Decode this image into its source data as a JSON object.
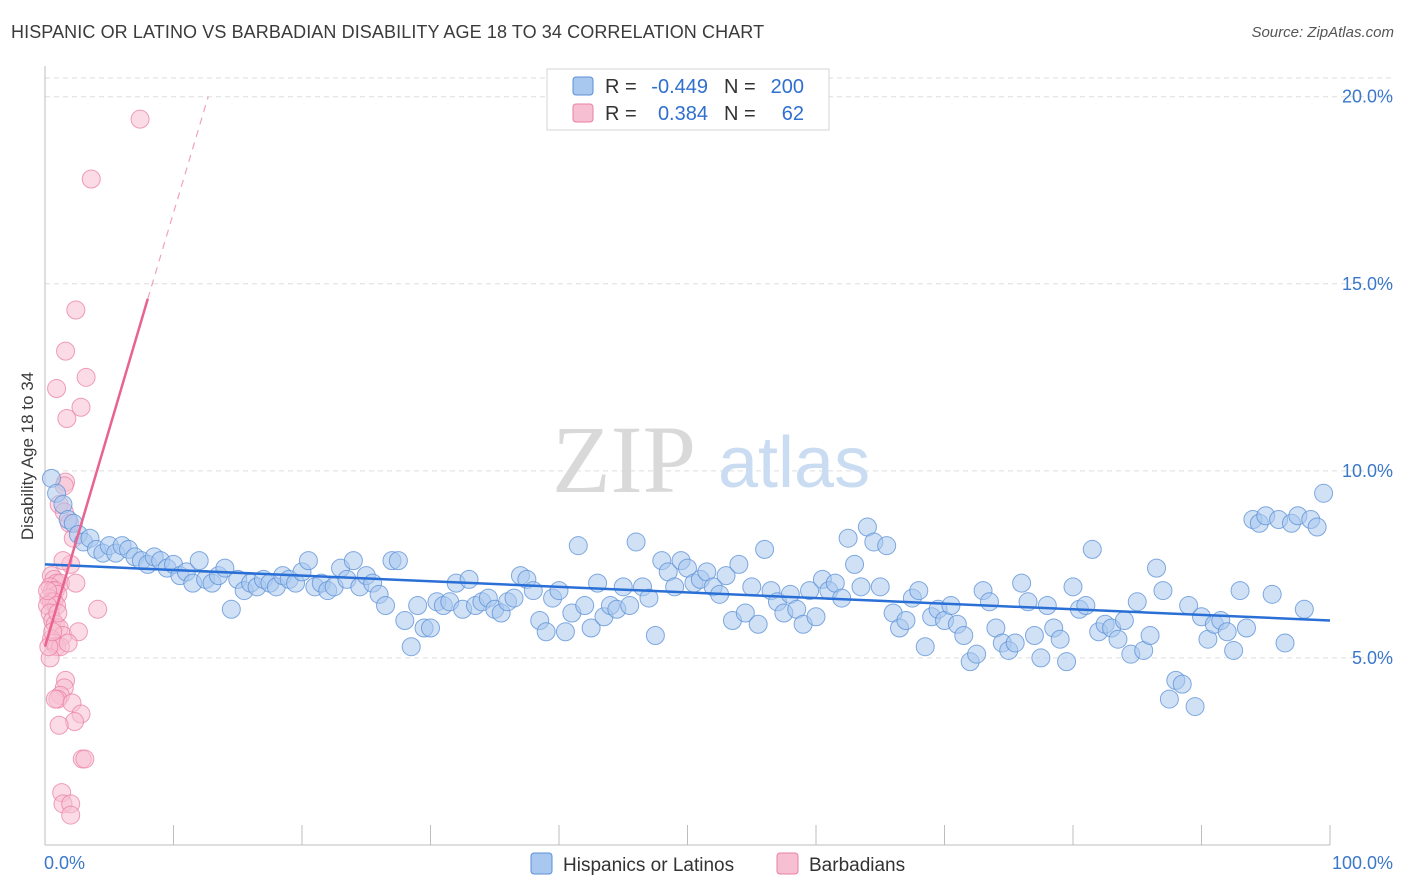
{
  "header": {
    "title": "HISPANIC OR LATINO VS BARBADIAN DISABILITY AGE 18 TO 34 CORRELATION CHART",
    "source": "Source: ZipAtlas.com"
  },
  "watermark": {
    "zip": "ZIP",
    "atlas": "atlas"
  },
  "colors": {
    "blue_fill": "#a9c8ef",
    "blue_stroke": "#5a8fd6",
    "blue_line": "#2a6fd6",
    "pink_fill": "#f7c0d2",
    "pink_stroke": "#e97fa3",
    "pink_line": "#e8638f",
    "tick_text": "#3a78c8",
    "grid": "#dddddd"
  },
  "legend": {
    "rows": [
      {
        "r_label": "R =",
        "r_value": "-0.449",
        "n_label": "N =",
        "n_value": "200"
      },
      {
        "r_label": "R =",
        "r_value": "0.384",
        "n_label": "N =",
        "n_value": "62"
      }
    ]
  },
  "chart_data": {
    "type": "scatter",
    "title": "HISPANIC OR LATINO VS BARBADIAN DISABILITY AGE 18 TO 34 CORRELATION CHART",
    "xlabel": "",
    "ylabel": "Disability Age 18 to 34",
    "xlim": [
      0,
      100
    ],
    "ylim": [
      0,
      20.5
    ],
    "x_tick_labels": [
      "0.0%",
      "100.0%"
    ],
    "y_ticks": [
      5,
      10,
      15,
      20
    ],
    "y_tick_labels": [
      "5.0%",
      "10.0%",
      "15.0%",
      "20.0%"
    ],
    "legend_position": "top-center",
    "series": [
      {
        "name": "Hispanics or Latinos",
        "r": -0.449,
        "n": 200,
        "trend": {
          "x": [
            0,
            100
          ],
          "y": [
            7.5,
            6.0
          ],
          "style": "solid"
        },
        "points": [
          [
            0.5,
            9.8
          ],
          [
            0.9,
            9.4
          ],
          [
            1.4,
            9.1
          ],
          [
            1.8,
            8.7
          ],
          [
            2.2,
            8.6
          ],
          [
            2.6,
            8.3
          ],
          [
            3.0,
            8.1
          ],
          [
            3.5,
            8.2
          ],
          [
            4.0,
            7.9
          ],
          [
            4.5,
            7.8
          ],
          [
            5.0,
            8.0
          ],
          [
            5.5,
            7.8
          ],
          [
            6.0,
            8.0
          ],
          [
            6.5,
            7.9
          ],
          [
            7.0,
            7.7
          ],
          [
            7.5,
            7.6
          ],
          [
            8.0,
            7.5
          ],
          [
            8.5,
            7.7
          ],
          [
            9.0,
            7.6
          ],
          [
            9.5,
            7.4
          ],
          [
            10.0,
            7.5
          ],
          [
            10.5,
            7.2
          ],
          [
            11.0,
            7.3
          ],
          [
            11.5,
            7.0
          ],
          [
            12.0,
            7.6
          ],
          [
            12.5,
            7.1
          ],
          [
            13.0,
            7.0
          ],
          [
            13.5,
            7.2
          ],
          [
            14.0,
            7.4
          ],
          [
            14.5,
            6.3
          ],
          [
            15.0,
            7.1
          ],
          [
            15.5,
            6.8
          ],
          [
            16.0,
            7.0
          ],
          [
            16.5,
            6.9
          ],
          [
            17.0,
            7.1
          ],
          [
            17.5,
            7.0
          ],
          [
            18.0,
            6.9
          ],
          [
            18.5,
            7.2
          ],
          [
            19.0,
            7.1
          ],
          [
            19.5,
            7.0
          ],
          [
            20.0,
            7.3
          ],
          [
            20.5,
            7.6
          ],
          [
            21.0,
            6.9
          ],
          [
            21.5,
            7.0
          ],
          [
            22.0,
            6.8
          ],
          [
            22.5,
            6.9
          ],
          [
            23.0,
            7.4
          ],
          [
            23.5,
            7.1
          ],
          [
            24.0,
            7.6
          ],
          [
            24.5,
            6.9
          ],
          [
            25.0,
            7.2
          ],
          [
            25.5,
            7.0
          ],
          [
            26.0,
            6.7
          ],
          [
            26.5,
            6.4
          ],
          [
            27.0,
            7.6
          ],
          [
            27.5,
            7.6
          ],
          [
            28.0,
            6.0
          ],
          [
            28.5,
            5.3
          ],
          [
            29.0,
            6.4
          ],
          [
            29.5,
            5.8
          ],
          [
            30.0,
            5.8
          ],
          [
            30.5,
            6.5
          ],
          [
            31.0,
            6.4
          ],
          [
            31.5,
            6.5
          ],
          [
            32.0,
            7.0
          ],
          [
            32.5,
            6.3
          ],
          [
            33.0,
            7.1
          ],
          [
            33.5,
            6.4
          ],
          [
            34.0,
            6.5
          ],
          [
            34.5,
            6.6
          ],
          [
            35.0,
            6.3
          ],
          [
            35.5,
            6.2
          ],
          [
            36.0,
            6.5
          ],
          [
            36.5,
            6.6
          ],
          [
            37.0,
            7.2
          ],
          [
            37.5,
            7.1
          ],
          [
            38.0,
            6.8
          ],
          [
            38.5,
            6.0
          ],
          [
            39.0,
            5.7
          ],
          [
            39.5,
            6.6
          ],
          [
            40.0,
            6.8
          ],
          [
            40.5,
            5.7
          ],
          [
            41.0,
            6.2
          ],
          [
            41.5,
            8.0
          ],
          [
            42.0,
            6.4
          ],
          [
            42.5,
            5.8
          ],
          [
            43.0,
            7.0
          ],
          [
            43.5,
            6.1
          ],
          [
            44.0,
            6.4
          ],
          [
            44.5,
            6.3
          ],
          [
            45.0,
            6.9
          ],
          [
            45.5,
            6.4
          ],
          [
            46.0,
            8.1
          ],
          [
            46.5,
            6.9
          ],
          [
            47.0,
            6.6
          ],
          [
            47.5,
            5.6
          ],
          [
            48.0,
            7.6
          ],
          [
            48.5,
            7.3
          ],
          [
            49.0,
            6.9
          ],
          [
            49.5,
            7.6
          ],
          [
            50.0,
            7.4
          ],
          [
            50.5,
            7.0
          ],
          [
            51.0,
            7.1
          ],
          [
            51.5,
            7.3
          ],
          [
            52.0,
            6.9
          ],
          [
            52.5,
            6.7
          ],
          [
            53.0,
            7.2
          ],
          [
            53.5,
            6.0
          ],
          [
            54.0,
            7.5
          ],
          [
            54.5,
            6.2
          ],
          [
            55.0,
            6.9
          ],
          [
            55.5,
            5.9
          ],
          [
            56.0,
            7.9
          ],
          [
            56.5,
            6.8
          ],
          [
            57.0,
            6.5
          ],
          [
            57.5,
            6.2
          ],
          [
            58.0,
            6.7
          ],
          [
            58.5,
            6.3
          ],
          [
            59.0,
            5.9
          ],
          [
            59.5,
            6.8
          ],
          [
            60.0,
            6.1
          ],
          [
            60.5,
            7.1
          ],
          [
            61.0,
            6.8
          ],
          [
            61.5,
            7.0
          ],
          [
            62.0,
            6.6
          ],
          [
            62.5,
            8.2
          ],
          [
            63.0,
            7.5
          ],
          [
            63.5,
            6.9
          ],
          [
            64.0,
            8.5
          ],
          [
            64.5,
            8.1
          ],
          [
            65.0,
            6.9
          ],
          [
            65.5,
            8.0
          ],
          [
            66.0,
            6.2
          ],
          [
            66.5,
            5.8
          ],
          [
            67.0,
            6.0
          ],
          [
            67.5,
            6.6
          ],
          [
            68.0,
            6.8
          ],
          [
            68.5,
            5.3
          ],
          [
            69.0,
            6.1
          ],
          [
            69.5,
            6.3
          ],
          [
            70.0,
            6.0
          ],
          [
            70.5,
            6.4
          ],
          [
            71.0,
            5.9
          ],
          [
            71.5,
            5.6
          ],
          [
            72.0,
            4.9
          ],
          [
            72.5,
            5.1
          ],
          [
            73.0,
            6.8
          ],
          [
            73.5,
            6.5
          ],
          [
            74.0,
            5.8
          ],
          [
            74.5,
            5.4
          ],
          [
            75.0,
            5.2
          ],
          [
            75.5,
            5.4
          ],
          [
            76.0,
            7.0
          ],
          [
            76.5,
            6.5
          ],
          [
            77.0,
            5.6
          ],
          [
            77.5,
            5.0
          ],
          [
            78.0,
            6.4
          ],
          [
            78.5,
            5.8
          ],
          [
            79.0,
            5.5
          ],
          [
            79.5,
            4.9
          ],
          [
            80.0,
            6.9
          ],
          [
            80.5,
            6.3
          ],
          [
            81.0,
            6.4
          ],
          [
            81.5,
            7.9
          ],
          [
            82.0,
            5.7
          ],
          [
            82.5,
            5.9
          ],
          [
            83.0,
            5.8
          ],
          [
            83.5,
            5.5
          ],
          [
            84.0,
            6.0
          ],
          [
            84.5,
            5.1
          ],
          [
            85.0,
            6.5
          ],
          [
            85.5,
            5.2
          ],
          [
            86.0,
            5.6
          ],
          [
            86.5,
            7.4
          ],
          [
            87.0,
            6.8
          ],
          [
            87.5,
            3.9
          ],
          [
            88.0,
            4.4
          ],
          [
            88.5,
            4.3
          ],
          [
            89.0,
            6.4
          ],
          [
            89.5,
            3.7
          ],
          [
            90.0,
            6.1
          ],
          [
            90.5,
            5.5
          ],
          [
            91.0,
            5.9
          ],
          [
            91.5,
            6.0
          ],
          [
            92.0,
            5.7
          ],
          [
            92.5,
            5.2
          ],
          [
            93.0,
            6.8
          ],
          [
            93.5,
            5.8
          ],
          [
            94.0,
            8.7
          ],
          [
            94.5,
            8.6
          ],
          [
            95.0,
            8.8
          ],
          [
            95.5,
            6.7
          ],
          [
            96.0,
            8.7
          ],
          [
            97.0,
            8.6
          ],
          [
            97.5,
            8.8
          ],
          [
            98.5,
            8.7
          ],
          [
            99.0,
            8.5
          ],
          [
            99.5,
            9.4
          ],
          [
            96.5,
            5.4
          ],
          [
            98.0,
            6.3
          ]
        ]
      },
      {
        "name": "Barbadians",
        "r": 0.384,
        "n": 62,
        "trend": {
          "x": [
            0,
            8
          ],
          "y": [
            5.3,
            14.6
          ],
          "style": "solid",
          "extension": {
            "x": [
              8,
              12.7
            ],
            "y": [
              14.6,
              20.0
            ],
            "style": "dashed"
          }
        },
        "points": [
          [
            7.4,
            19.4
          ],
          [
            3.6,
            17.8
          ],
          [
            2.4,
            14.3
          ],
          [
            1.6,
            13.2
          ],
          [
            3.2,
            12.5
          ],
          [
            0.9,
            12.2
          ],
          [
            1.7,
            11.4
          ],
          [
            2.8,
            11.7
          ],
          [
            1.6,
            9.7
          ],
          [
            1.5,
            9.6
          ],
          [
            1.1,
            9.1
          ],
          [
            1.5,
            8.9
          ],
          [
            1.9,
            8.6
          ],
          [
            2.2,
            8.2
          ],
          [
            2.0,
            7.5
          ],
          [
            1.4,
            7.6
          ],
          [
            0.5,
            7.2
          ],
          [
            0.7,
            7.1
          ],
          [
            0.9,
            7.0
          ],
          [
            1.2,
            7.0
          ],
          [
            0.4,
            6.9
          ],
          [
            0.6,
            6.8
          ],
          [
            0.8,
            6.8
          ],
          [
            1.0,
            6.7
          ],
          [
            0.3,
            6.6
          ],
          [
            0.5,
            6.5
          ],
          [
            0.7,
            6.5
          ],
          [
            0.9,
            6.4
          ],
          [
            0.2,
            6.4
          ],
          [
            2.4,
            7.0
          ],
          [
            0.4,
            6.2
          ],
          [
            0.6,
            6.0
          ],
          [
            0.8,
            5.9
          ],
          [
            1.1,
            5.8
          ],
          [
            1.4,
            5.6
          ],
          [
            0.5,
            5.5
          ],
          [
            0.7,
            5.4
          ],
          [
            0.9,
            5.3
          ],
          [
            1.2,
            5.3
          ],
          [
            0.4,
            5.0
          ],
          [
            0.3,
            5.3
          ],
          [
            0.6,
            5.7
          ],
          [
            1.6,
            4.4
          ],
          [
            1.5,
            4.2
          ],
          [
            1.2,
            4.0
          ],
          [
            1.0,
            3.9
          ],
          [
            0.8,
            3.9
          ],
          [
            2.1,
            3.8
          ],
          [
            2.8,
            3.5
          ],
          [
            2.3,
            3.3
          ],
          [
            1.1,
            3.2
          ],
          [
            2.9,
            2.3
          ],
          [
            3.1,
            2.3
          ],
          [
            1.3,
            1.4
          ],
          [
            1.4,
            1.1
          ],
          [
            2.0,
            1.1
          ],
          [
            2.0,
            0.8
          ],
          [
            4.1,
            6.3
          ],
          [
            2.6,
            5.7
          ],
          [
            1.8,
            5.4
          ],
          [
            0.2,
            6.8
          ],
          [
            1.0,
            6.2
          ]
        ]
      }
    ]
  },
  "bottom_legend": {
    "items": [
      {
        "label": "Hispanics or Latinos"
      },
      {
        "label": "Barbadians"
      }
    ]
  }
}
